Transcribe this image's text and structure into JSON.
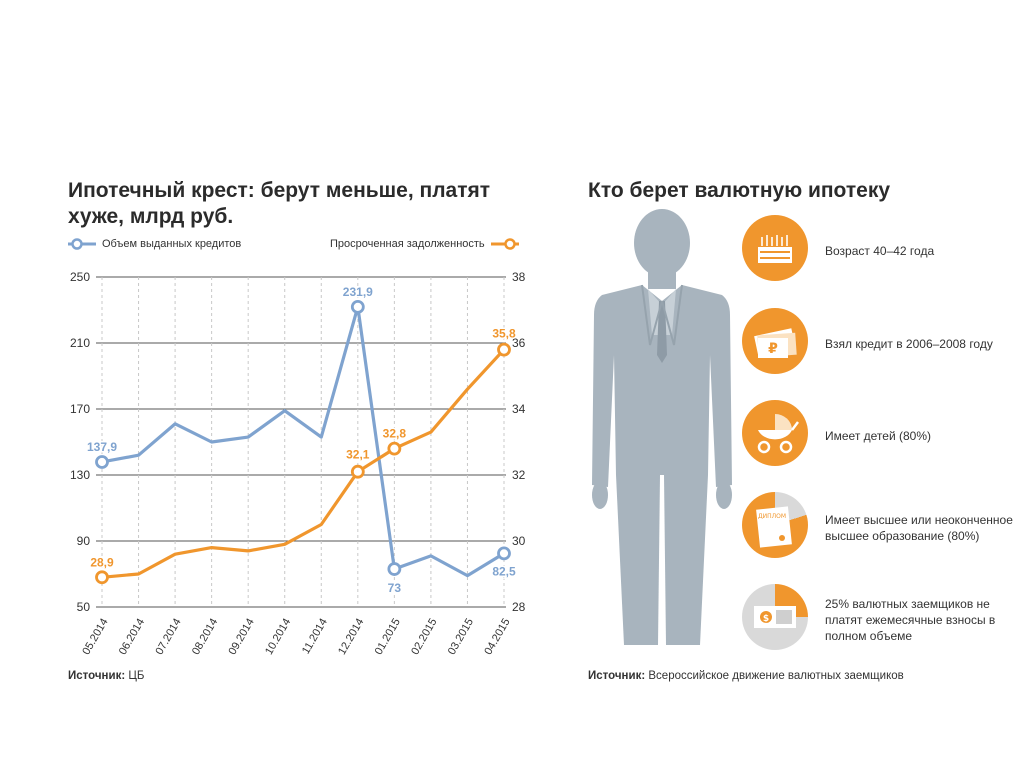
{
  "left_panel": {
    "title": "Ипотечный крест: берут меньше, платят хуже, млрд руб.",
    "source_label": "Источник:",
    "source_value": "ЦБ"
  },
  "right_panel": {
    "title": "Кто берет валютную ипотеку",
    "source_label": "Источник:",
    "source_value": "Всероссийское движение валютных заемщиков",
    "features": [
      {
        "icon": "cake-icon",
        "text": "Возраст 40–42 года"
      },
      {
        "icon": "ruble-money-icon",
        "text": "Взял кредит в 2006–2008 году"
      },
      {
        "icon": "baby-stroller-icon",
        "text": "Имеет детей (80%)"
      },
      {
        "icon": "diploma-icon",
        "text": "Имеет высшее или неоконченное высшее образование (80%)",
        "icon_label": "ДИПЛОМ"
      },
      {
        "icon": "dollar-bill-icon",
        "text": "25% валютных заемщиков не платят ежемесячные взносы в полном объеме"
      }
    ]
  },
  "colors": {
    "blue": "#7fa3cf",
    "orange": "#f0962d",
    "grid": "#555555",
    "silhouette": "#a8b4be",
    "title": "#2b2b2b"
  },
  "chart_data": {
    "type": "line",
    "categories": [
      "05.2014",
      "06.2014",
      "07.2014",
      "08.2014",
      "09.2014",
      "10.2014",
      "11.2014",
      "12.2014",
      "01.2015",
      "02.2015",
      "03.2015",
      "04.2015"
    ],
    "series": [
      {
        "name": "Объем выданных кредитов",
        "axis": "left",
        "values": [
          137.9,
          142,
          161,
          150,
          153,
          169,
          153,
          231.9,
          73,
          81,
          69,
          82.5
        ],
        "labels": [
          {
            "index": 0,
            "text": "137,9"
          },
          {
            "index": 7,
            "text": "231,9"
          },
          {
            "index": 8,
            "text": "73"
          },
          {
            "index": 11,
            "text": "82,5"
          }
        ]
      },
      {
        "name": "Просроченная задолженность",
        "axis": "right",
        "values": [
          28.9,
          29.0,
          29.6,
          29.8,
          29.7,
          29.9,
          30.5,
          32.1,
          32.8,
          33.3,
          34.6,
          35.8
        ],
        "labels": [
          {
            "index": 0,
            "text": "28,9"
          },
          {
            "index": 7,
            "text": "32,1"
          },
          {
            "index": 8,
            "text": "32,8"
          },
          {
            "index": 11,
            "text": "35,8"
          }
        ]
      }
    ],
    "y_left": {
      "range": [
        50,
        250
      ],
      "ticks": [
        "50",
        "90",
        "130",
        "170",
        "210",
        "250"
      ]
    },
    "y_right": {
      "range": [
        28,
        38
      ],
      "ticks": [
        "28",
        "30",
        "32",
        "34",
        "36",
        "38"
      ]
    },
    "title": "Ипотечный крест: берут меньше, платят хуже, млрд руб.",
    "grid": true,
    "legend": "top"
  }
}
